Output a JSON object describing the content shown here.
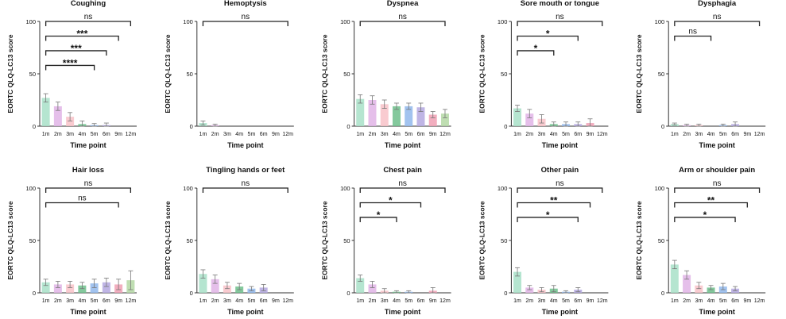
{
  "ylabel": "EORTC QLQ-LC13 score",
  "xlabel": "Time point",
  "categories": [
    "1m",
    "2m",
    "3m",
    "4m",
    "5m",
    "6m",
    "9m",
    "12m"
  ],
  "yticks": [
    0,
    50,
    100
  ],
  "ylim": [
    0,
    100
  ],
  "colors": [
    "#a8e0c8",
    "#e0b4e6",
    "#f8c2c8",
    "#6ec08c",
    "#92b8ec",
    "#b4a8e0",
    "#f0a0b4",
    "#b4d8a4"
  ],
  "chart_data": [
    {
      "type": "bar",
      "title": "Coughing",
      "xlabel": "Time point",
      "ylabel": "EORTC QLQ-LC13 score",
      "ylim": [
        0,
        100
      ],
      "categories": [
        "1m",
        "2m",
        "3m",
        "4m",
        "5m",
        "6m",
        "9m",
        "12m"
      ],
      "values": [
        27,
        19,
        9,
        2,
        1,
        1,
        0,
        0
      ],
      "errors": [
        4,
        4,
        4,
        3,
        1.5,
        2,
        0,
        0
      ],
      "brackets": [
        {
          "from": "1m",
          "to": "12m",
          "label": "ns"
        },
        {
          "from": "1m",
          "to": "9m",
          "label": "***"
        },
        {
          "from": "1m",
          "to": "6m",
          "label": "***"
        },
        {
          "from": "1m",
          "to": "5m",
          "label": "****"
        }
      ]
    },
    {
      "type": "bar",
      "title": "Hemoptysis",
      "xlabel": "Time point",
      "ylabel": "EORTC QLQ-LC13 score",
      "ylim": [
        0,
        100
      ],
      "categories": [
        "1m",
        "2m",
        "3m",
        "4m",
        "5m",
        "6m",
        "9m",
        "12m"
      ],
      "values": [
        3,
        1,
        0,
        0,
        0,
        0,
        0,
        0
      ],
      "errors": [
        2,
        1,
        0,
        0,
        0,
        0,
        0,
        0
      ],
      "brackets": [
        {
          "from": "1m",
          "to": "12m",
          "label": "ns"
        }
      ]
    },
    {
      "type": "bar",
      "title": "Dyspnea",
      "xlabel": "Time point",
      "ylabel": "EORTC QLQ-LC13 score",
      "ylim": [
        0,
        100
      ],
      "categories": [
        "1m",
        "2m",
        "3m",
        "4m",
        "5m",
        "6m",
        "9m",
        "12m"
      ],
      "values": [
        26,
        25,
        21,
        19,
        19,
        18,
        11,
        12
      ],
      "errors": [
        4,
        4,
        4,
        3,
        3,
        4,
        3,
        4
      ],
      "brackets": [
        {
          "from": "1m",
          "to": "12m",
          "label": "ns"
        }
      ]
    },
    {
      "type": "bar",
      "title": "Sore mouth or tongue",
      "xlabel": "Time point",
      "ylabel": "EORTC QLQ-LC13 score",
      "ylim": [
        0,
        100
      ],
      "categories": [
        "1m",
        "2m",
        "3m",
        "4m",
        "5m",
        "6m",
        "9m",
        "12m"
      ],
      "values": [
        17,
        12,
        7,
        2,
        2,
        2,
        3,
        0
      ],
      "errors": [
        3,
        4,
        4,
        2,
        2,
        2,
        4,
        0
      ],
      "brackets": [
        {
          "from": "1m",
          "to": "12m",
          "label": "ns"
        },
        {
          "from": "1m",
          "to": "6m",
          "label": "*"
        },
        {
          "from": "1m",
          "to": "4m",
          "label": "*"
        }
      ]
    },
    {
      "type": "bar",
      "title": "Dysphagia",
      "xlabel": "Time point",
      "ylabel": "EORTC QLQ-LC13 score",
      "ylim": [
        0,
        100
      ],
      "categories": [
        "1m",
        "2m",
        "3m",
        "4m",
        "5m",
        "6m",
        "9m",
        "12m"
      ],
      "values": [
        2,
        1,
        1,
        0,
        1,
        2,
        0,
        0
      ],
      "errors": [
        1,
        1,
        1,
        0,
        1,
        2,
        0,
        0
      ],
      "brackets": [
        {
          "from": "1m",
          "to": "12m",
          "label": "ns"
        },
        {
          "from": "1m",
          "to": "4m",
          "label": "ns"
        }
      ]
    },
    {
      "type": "bar",
      "title": "Hair loss",
      "xlabel": "Time point",
      "ylabel": "EORTC QLQ-LC13 score",
      "ylim": [
        0,
        100
      ],
      "categories": [
        "1m",
        "2m",
        "3m",
        "4m",
        "5m",
        "6m",
        "9m",
        "12m"
      ],
      "values": [
        10,
        8,
        8,
        7,
        9,
        10,
        8,
        12
      ],
      "errors": [
        3,
        3,
        3,
        3,
        4,
        4,
        5,
        9
      ],
      "brackets": [
        {
          "from": "1m",
          "to": "12m",
          "label": "ns"
        },
        {
          "from": "1m",
          "to": "9m",
          "label": "ns"
        }
      ]
    },
    {
      "type": "bar",
      "title": "Tingling hands or feet",
      "xlabel": "Time point",
      "ylabel": "EORTC QLQ-LC13 score",
      "ylim": [
        0,
        100
      ],
      "categories": [
        "1m",
        "2m",
        "3m",
        "4m",
        "5m",
        "6m",
        "9m",
        "12m"
      ],
      "values": [
        18,
        13,
        7,
        6,
        4,
        5,
        0,
        0
      ],
      "errors": [
        4,
        4,
        3,
        3,
        2,
        3,
        0,
        0
      ],
      "brackets": [
        {
          "from": "1m",
          "to": "12m",
          "label": "ns"
        }
      ]
    },
    {
      "type": "bar",
      "title": "Chest pain",
      "xlabel": "Time point",
      "ylabel": "EORTC QLQ-LC13 score",
      "ylim": [
        0,
        100
      ],
      "categories": [
        "1m",
        "2m",
        "3m",
        "4m",
        "5m",
        "6m",
        "9m",
        "12m"
      ],
      "values": [
        14,
        8,
        2,
        1,
        1,
        0,
        2,
        0
      ],
      "errors": [
        3,
        3,
        2,
        1,
        1,
        0,
        3,
        0
      ],
      "brackets": [
        {
          "from": "1m",
          "to": "12m",
          "label": "ns"
        },
        {
          "from": "1m",
          "to": "6m",
          "label": "*"
        },
        {
          "from": "1m",
          "to": "4m",
          "label": "*"
        }
      ]
    },
    {
      "type": "bar",
      "title": "Other pain",
      "xlabel": "Time point",
      "ylabel": "EORTC QLQ-LC13 score",
      "ylim": [
        0,
        100
      ],
      "categories": [
        "1m",
        "2m",
        "3m",
        "4m",
        "5m",
        "6m",
        "9m",
        "12m"
      ],
      "values": [
        20,
        5,
        3,
        4,
        1,
        3,
        0,
        0
      ],
      "errors": [
        4,
        2,
        2,
        3,
        1,
        2,
        0,
        0
      ],
      "brackets": [
        {
          "from": "1m",
          "to": "12m",
          "label": "ns"
        },
        {
          "from": "1m",
          "to": "9m",
          "label": "**"
        },
        {
          "from": "1m",
          "to": "6m",
          "label": "*"
        }
      ]
    },
    {
      "type": "bar",
      "title": "Arm or shoulder pain",
      "xlabel": "Time point",
      "ylabel": "EORTC QLQ-LC13 score",
      "ylim": [
        0,
        100
      ],
      "categories": [
        "1m",
        "2m",
        "3m",
        "4m",
        "5m",
        "6m",
        "9m",
        "12m"
      ],
      "values": [
        27,
        17,
        7,
        5,
        6,
        4,
        0,
        0
      ],
      "errors": [
        4,
        4,
        3,
        2,
        3,
        2,
        0,
        0
      ],
      "brackets": [
        {
          "from": "1m",
          "to": "12m",
          "label": "ns"
        },
        {
          "from": "1m",
          "to": "9m",
          "label": "**"
        },
        {
          "from": "1m",
          "to": "6m",
          "label": "*"
        }
      ]
    }
  ]
}
